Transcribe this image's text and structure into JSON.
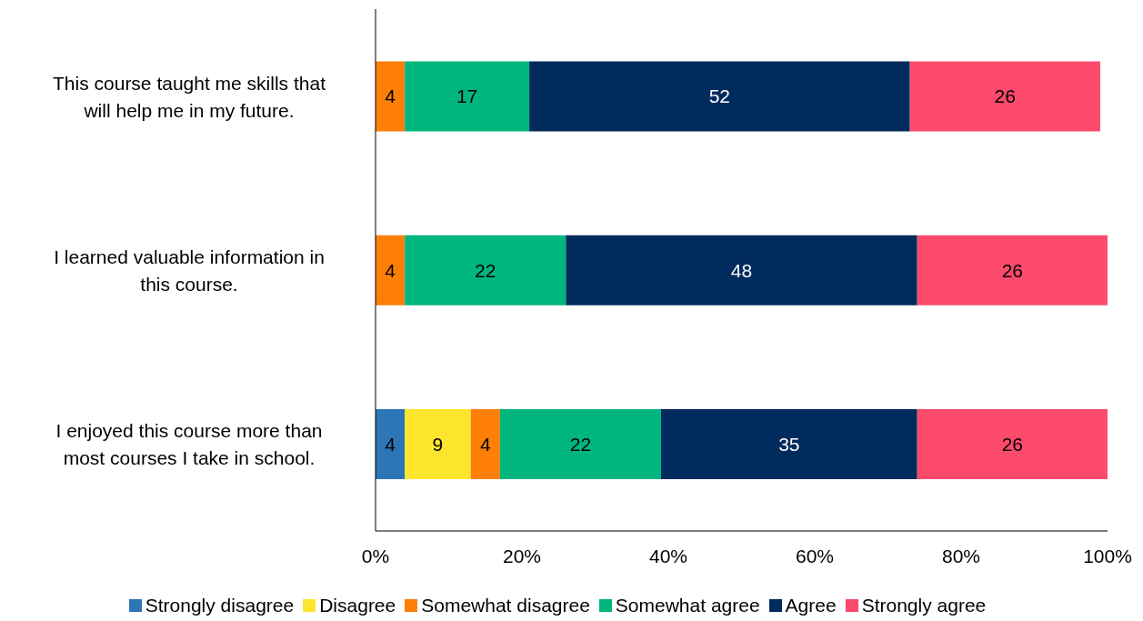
{
  "chart_data": {
    "type": "bar",
    "orientation": "horizontal",
    "stacked": true,
    "categories": [
      "This course taught me skills that will help me in my future.",
      "I learned valuable information in this course.",
      "I enjoyed this course more than most courses I take in school."
    ],
    "series": [
      {
        "name": "Strongly disagree",
        "color": "#2e75b6",
        "values": [
          null,
          null,
          4
        ]
      },
      {
        "name": "Disagree",
        "color": "#fce52c",
        "values": [
          null,
          null,
          9
        ]
      },
      {
        "name": "Somewhat disagree",
        "color": "#fd7f08",
        "values": [
          4,
          4,
          4
        ]
      },
      {
        "name": "Somewhat agree",
        "color": "#00b67e",
        "values": [
          17,
          22,
          22
        ]
      },
      {
        "name": "Agree",
        "color": "#002b5c",
        "values": [
          52,
          48,
          35
        ]
      },
      {
        "name": "Strongly agree",
        "color": "#fc4a6c",
        "values": [
          26,
          26,
          26
        ]
      }
    ],
    "xlim": [
      0,
      100
    ],
    "xticks": [
      {
        "value": 0,
        "label": "0%"
      },
      {
        "value": 20,
        "label": "20%"
      },
      {
        "value": 40,
        "label": "40%"
      },
      {
        "value": 60,
        "label": "60%"
      },
      {
        "value": 80,
        "label": "80%"
      },
      {
        "value": 100,
        "label": "100%"
      }
    ],
    "data_labels": true,
    "grid": false,
    "legend": "bottom"
  }
}
